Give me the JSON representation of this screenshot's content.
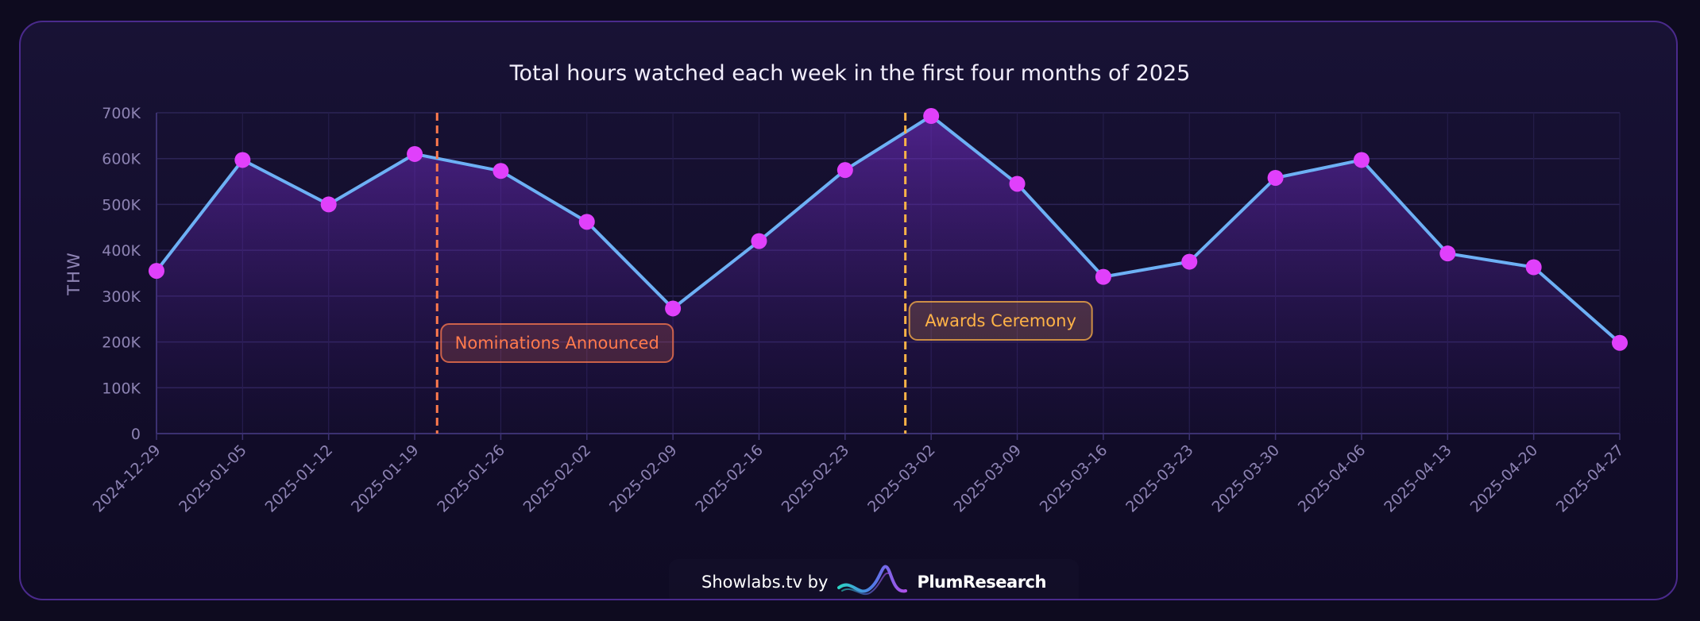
{
  "chart_data": {
    "type": "area",
    "title": "Total hours watched each week in the first four months of 2025",
    "xlabel": "",
    "ylabel": "THW",
    "ylim": [
      0,
      700000
    ],
    "yticks": [
      0,
      100000,
      200000,
      300000,
      400000,
      500000,
      600000,
      700000
    ],
    "ytick_labels": [
      "0",
      "100K",
      "200K",
      "300K",
      "400K",
      "500K",
      "600K",
      "700K"
    ],
    "grid": true,
    "categories": [
      "2024-12-29",
      "2025-01-05",
      "2025-01-12",
      "2025-01-19",
      "2025-01-26",
      "2025-02-02",
      "2025-02-09",
      "2025-02-16",
      "2025-02-23",
      "2025-03-02",
      "2025-03-09",
      "2025-03-16",
      "2025-03-23",
      "2025-03-30",
      "2025-04-06",
      "2025-04-13",
      "2025-04-20",
      "2025-04-27"
    ],
    "series": [
      {
        "name": "THW",
        "values": [
          355000,
          597000,
          500000,
          610000,
          573000,
          462000,
          273000,
          420000,
          575000,
          693000,
          545000,
          342000,
          375000,
          558000,
          597000,
          393000,
          363000,
          198000
        ]
      }
    ],
    "annotations": [
      {
        "label": "Nominations Announced",
        "x_index": 3.26,
        "color": "#ff7a4d"
      },
      {
        "label": "Awards Ceremony",
        "x_index": 8.7,
        "color": "#ffb347"
      }
    ],
    "colors": {
      "line": "#6db0f5",
      "marker": "#e040fb",
      "area": "#7a2fd0"
    }
  },
  "footer": {
    "prefix": "Showlabs.tv by",
    "brand": "PlumResearch",
    "logo_icon": "plumresearch-wave-icon"
  }
}
